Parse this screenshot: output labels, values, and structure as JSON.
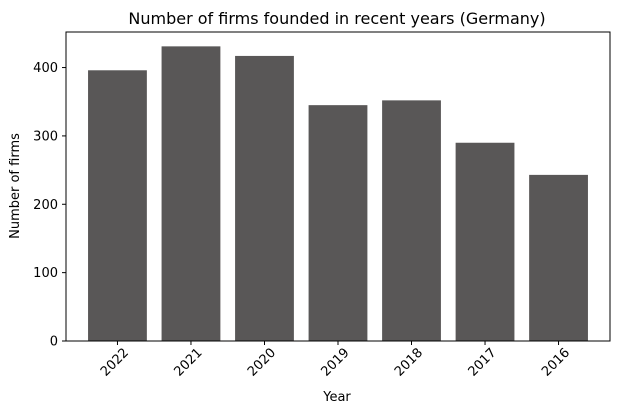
{
  "chart_data": {
    "type": "bar",
    "title": "Number of firms founded in recent years (Germany)",
    "xlabel": "Year",
    "ylabel": "Number of firms",
    "categories": [
      "2022",
      "2021",
      "2020",
      "2019",
      "2018",
      "2017",
      "2016"
    ],
    "values": [
      396,
      431,
      417,
      345,
      352,
      290,
      243
    ],
    "ylim": [
      0,
      452
    ],
    "yticks": [
      0,
      100,
      200,
      300,
      400
    ],
    "grid": false,
    "bar_color": "#595757"
  }
}
